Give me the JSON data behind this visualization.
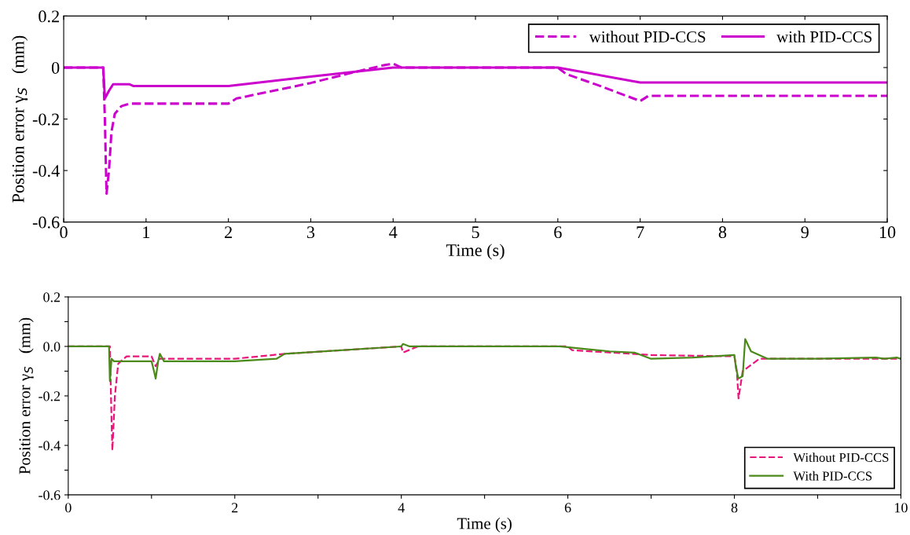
{
  "chart_data": [
    {
      "type": "line",
      "xlabel": "Time (s)",
      "ylabel": "Position error γ$_{S}$   (mm)",
      "xlim": [
        0,
        10
      ],
      "ylim": [
        -0.6,
        0.2
      ],
      "xticks": [
        0,
        1,
        2,
        3,
        4,
        5,
        6,
        7,
        8,
        9,
        10
      ],
      "yticks": [
        -0.6,
        -0.4,
        -0.2,
        0,
        0.2
      ],
      "grid": false,
      "legend": "top right",
      "series": [
        {
          "name": "without PID-CCS",
          "color": "#cc00cc",
          "line_style": "dashed",
          "x": [
            0,
            0.48,
            0.5,
            0.52,
            0.55,
            0.58,
            0.62,
            0.7,
            0.8,
            2.0,
            2.1,
            3.0,
            3.5,
            3.9,
            4.0,
            4.1,
            6.0,
            6.1,
            6.5,
            7.0,
            7.1,
            10
          ],
          "values": [
            0,
            0,
            -0.2,
            -0.49,
            -0.4,
            -0.25,
            -0.18,
            -0.15,
            -0.14,
            -0.14,
            -0.12,
            -0.06,
            -0.02,
            0.01,
            0.015,
            0,
            0,
            -0.025,
            -0.07,
            -0.13,
            -0.11,
            -0.11
          ]
        },
        {
          "name": "with PID-CCS",
          "color": "#cc00cc",
          "line_style": "solid",
          "x": [
            0,
            0.48,
            0.5,
            0.55,
            0.6,
            0.8,
            0.85,
            2.0,
            3.0,
            4.0,
            6.0,
            7.0,
            10
          ],
          "values": [
            0,
            0,
            -0.12,
            -0.09,
            -0.065,
            -0.065,
            -0.072,
            -0.072,
            -0.035,
            0,
            0,
            -0.058,
            -0.058
          ]
        }
      ]
    },
    {
      "type": "line",
      "xlabel": "Time (s)",
      "ylabel": "Position error γ$_{S}$   (mm)",
      "xlim": [
        0,
        10
      ],
      "ylim": [
        -0.6,
        0.2
      ],
      "xticks": [
        0,
        {
          "value": 1,
          "label": null
        },
        2,
        {
          "value": 3,
          "label": null
        },
        4,
        {
          "value": 5,
          "label": null
        },
        6,
        {
          "value": 7,
          "label": null
        },
        8,
        {
          "value": 9,
          "label": null
        },
        10
      ],
      "yticks": [
        {
          "value": -0.6,
          "label": "-0.6"
        },
        {
          "value": -0.5,
          "label": null
        },
        {
          "value": -0.4,
          "label": "-0.4"
        },
        {
          "value": -0.3,
          "label": null
        },
        {
          "value": -0.2,
          "label": "-0.2"
        },
        {
          "value": -0.1,
          "label": null
        },
        {
          "value": 0,
          "label": "0.0"
        },
        {
          "value": 0.1,
          "label": null
        },
        {
          "value": 0.2,
          "label": "0.2"
        }
      ],
      "grid": false,
      "legend": "bottom right",
      "series": [
        {
          "name": "Without PID-CCS",
          "color": "#e8167a",
          "line_style": "dashed",
          "x": [
            0,
            0.5,
            0.52,
            0.53,
            0.56,
            0.6,
            0.7,
            1.0,
            1.05,
            1.1,
            2.0,
            2.6,
            4.0,
            4.02,
            4.2,
            6.0,
            6.05,
            7.0,
            8.0,
            8.03,
            8.05,
            8.1,
            8.3,
            10
          ],
          "values": [
            0,
            0,
            -0.3,
            -0.42,
            -0.2,
            -0.07,
            -0.04,
            -0.04,
            -0.08,
            -0.05,
            -0.05,
            -0.03,
            0,
            -0.025,
            0,
            0,
            -0.015,
            -0.035,
            -0.04,
            -0.1,
            -0.21,
            -0.1,
            -0.05,
            -0.05
          ]
        },
        {
          "name": "With PID-CCS",
          "color": "#4a8a1a",
          "line_style": "solid",
          "x": [
            0,
            0.49,
            0.5,
            0.52,
            0.55,
            1.0,
            1.03,
            1.05,
            1.08,
            1.1,
            1.15,
            2.0,
            2.5,
            2.6,
            4.0,
            4.02,
            4.1,
            5.9,
            6.2,
            6.5,
            6.8,
            7.0,
            7.5,
            8.0,
            8.02,
            8.05,
            8.1,
            8.13,
            8.2,
            8.4,
            9.0,
            9.7,
            9.8,
            9.95,
            10
          ],
          "values": [
            0,
            0,
            -0.14,
            -0.05,
            -0.06,
            -0.06,
            -0.1,
            -0.13,
            -0.06,
            -0.03,
            -0.06,
            -0.06,
            -0.05,
            -0.03,
            0,
            0.01,
            0,
            0,
            -0.01,
            -0.02,
            -0.025,
            -0.05,
            -0.045,
            -0.035,
            -0.09,
            -0.13,
            -0.12,
            0.03,
            -0.02,
            -0.05,
            -0.05,
            -0.045,
            -0.05,
            -0.045,
            -0.05
          ]
        }
      ]
    }
  ]
}
